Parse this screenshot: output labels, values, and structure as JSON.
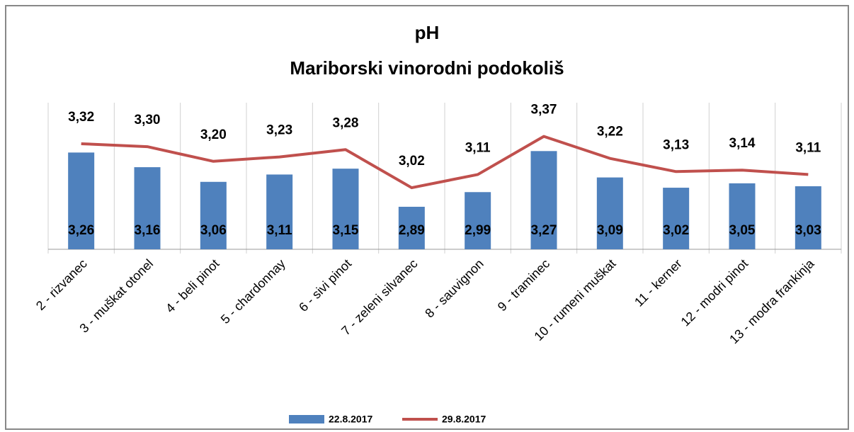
{
  "chart_data": {
    "type": "bar",
    "title": "pH",
    "subtitle": "Mariborski vinorodni podokoliš",
    "categories": [
      "2 - rizvanec",
      "3 - muškat otonel",
      "4 - beli pinot",
      "5 - chardonnay",
      "6 - sivi pinot",
      "7 - zeleni silvanec",
      "8 - sauvignon",
      "9 - traminec",
      "10 - rumeni muškat",
      "11 - kerner",
      "12 - modri pinot",
      "13 - modra frankinja"
    ],
    "series": [
      {
        "name": "22.8.2017",
        "type": "bar",
        "color": "#4f81bd",
        "values": [
          3.26,
          3.16,
          3.06,
          3.11,
          3.15,
          2.89,
          2.99,
          3.27,
          3.09,
          3.02,
          3.05,
          3.03
        ],
        "value_labels": [
          "3,26",
          "3,16",
          "3,06",
          "3,11",
          "3,15",
          "2,89",
          "2,99",
          "3,27",
          "3,09",
          "3,02",
          "3,05",
          "3,03"
        ]
      },
      {
        "name": "29.8.2017",
        "type": "line",
        "color": "#c0504d",
        "values": [
          3.32,
          3.3,
          3.2,
          3.23,
          3.28,
          3.02,
          3.11,
          3.37,
          3.22,
          3.13,
          3.14,
          3.11
        ],
        "value_labels": [
          "3,32",
          "3,30",
          "3,20",
          "3,23",
          "3,28",
          "3,02",
          "3,11",
          "3,37",
          "3,22",
          "3,13",
          "3,14",
          "3,11"
        ]
      }
    ],
    "ylim": [
      2.6,
      3.6
    ],
    "legend": "bottom"
  }
}
